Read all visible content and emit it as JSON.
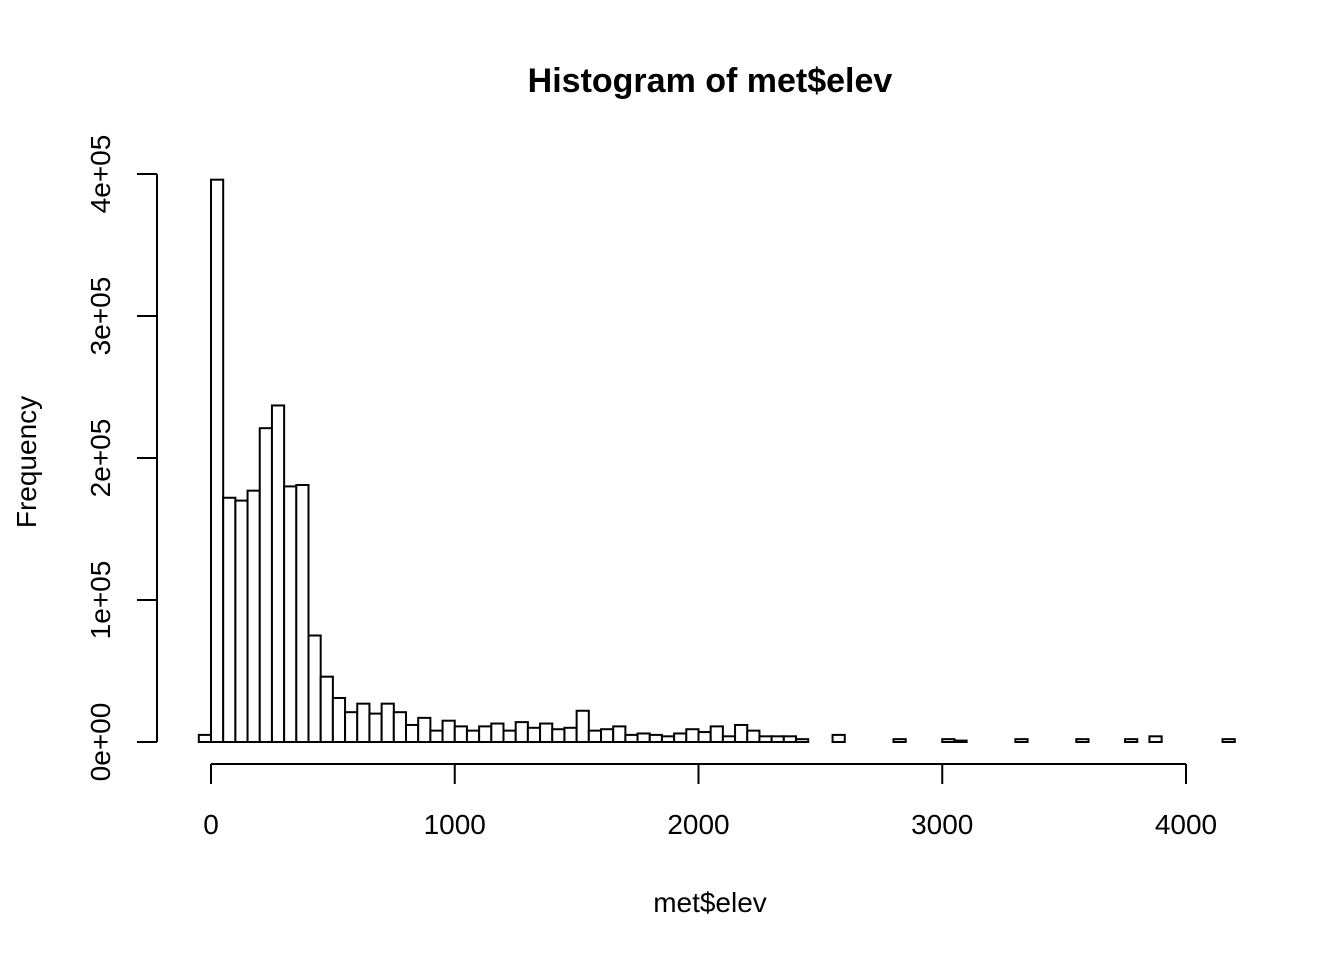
{
  "chart_data": {
    "type": "bar",
    "title": "Histogram of met$elev",
    "xlabel": "met$elev",
    "ylabel": "Frequency",
    "x_ticks": [
      0,
      1000,
      2000,
      3000,
      4000
    ],
    "x_tick_labels": [
      "0",
      "1000",
      "2000",
      "3000",
      "4000"
    ],
    "y_ticks": [
      0,
      100000,
      200000,
      300000,
      400000
    ],
    "y_tick_labels": [
      "0e+00",
      "1e+05",
      "2e+05",
      "3e+05",
      "4e+05"
    ],
    "xlim": [
      -50,
      4150
    ],
    "ylim": [
      0,
      400000
    ],
    "bin_width": 50,
    "bin_start": -50,
    "values": [
      5000,
      396000,
      172000,
      170000,
      177000,
      221000,
      237000,
      180000,
      181000,
      75000,
      46000,
      31000,
      21000,
      27000,
      20000,
      27000,
      21000,
      12000,
      17000,
      8000,
      15000,
      11000,
      8000,
      11000,
      13000,
      8000,
      14000,
      10000,
      13000,
      9000,
      10000,
      22000,
      8000,
      9000,
      11000,
      5000,
      6000,
      5000,
      4000,
      6000,
      9000,
      7000,
      11000,
      4000,
      12000,
      8000,
      4000,
      4000,
      4000,
      2000,
      0,
      0,
      5000,
      0,
      0,
      0,
      0,
      2000,
      0,
      0,
      0,
      2000,
      1000,
      0,
      0,
      0,
      0,
      2000,
      0,
      0,
      0,
      0,
      2000,
      0,
      0,
      0,
      2000,
      0,
      4000,
      0,
      0,
      0,
      0,
      0,
      2000
    ]
  }
}
